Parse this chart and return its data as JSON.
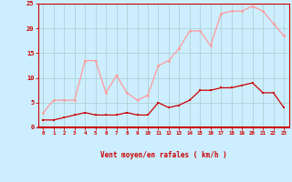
{
  "x": [
    0,
    1,
    2,
    3,
    4,
    5,
    6,
    7,
    8,
    9,
    10,
    11,
    12,
    13,
    14,
    15,
    16,
    17,
    18,
    19,
    20,
    21,
    22,
    23
  ],
  "wind_avg": [
    1.5,
    1.5,
    2.0,
    2.5,
    3.0,
    2.5,
    2.5,
    2.5,
    3.0,
    2.5,
    2.5,
    5.0,
    4.0,
    4.5,
    5.5,
    7.5,
    7.5,
    8.0,
    8.0,
    8.5,
    9.0,
    7.0,
    7.0,
    4.0
  ],
  "wind_gust": [
    3.0,
    5.5,
    5.5,
    5.5,
    13.5,
    13.5,
    7.0,
    10.5,
    7.0,
    5.5,
    6.5,
    12.5,
    13.5,
    16.0,
    19.5,
    19.5,
    16.5,
    23.0,
    23.5,
    23.5,
    24.5,
    23.5,
    21.0,
    18.5
  ],
  "color_avg": "#cc0000",
  "color_gust": "#ff9999",
  "bg_color": "#cceeff",
  "grid_color": "#aacccc",
  "xlabel": "Vent moyen/en rafales ( km/h )",
  "xlabel_color": "#cc0000",
  "tick_color": "#cc0000",
  "ylim": [
    0,
    25
  ],
  "yticks": [
    0,
    5,
    10,
    15,
    20,
    25
  ],
  "xlim": [
    -0.5,
    23.5
  ]
}
